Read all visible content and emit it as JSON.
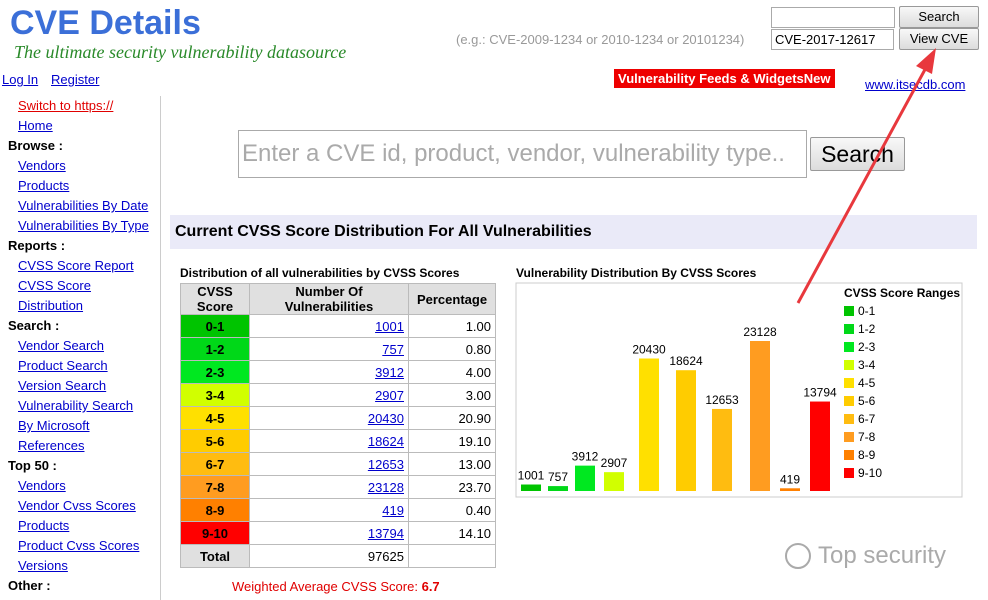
{
  "header": {
    "title": "CVE Details",
    "tagline": "The ultimate security vulnerability datasource",
    "example": "(e.g.: CVE-2009-1234 or 2010-1234 or 20101234)",
    "search_button": "Search",
    "cve_input": "CVE-2017-12617",
    "view_button": "View CVE",
    "login": "Log In",
    "register": "Register",
    "feeds": "Vulnerability Feeds & WidgetsNew",
    "site_link": "www.itsecdb.com"
  },
  "sidebar": {
    "items": [
      {
        "text": "Switch to https://",
        "kind": "alert"
      },
      {
        "text": "Home",
        "kind": "link"
      },
      {
        "text": "Browse :",
        "kind": "heading"
      },
      {
        "text": "Vendors",
        "kind": "link"
      },
      {
        "text": "Products",
        "kind": "link"
      },
      {
        "text": "Vulnerabilities By Date",
        "kind": "link"
      },
      {
        "text": "Vulnerabilities By Type",
        "kind": "link"
      },
      {
        "text": "Reports :",
        "kind": "heading"
      },
      {
        "text": "CVSS Score Report",
        "kind": "link"
      },
      {
        "text": "CVSS Score Distribution",
        "kind": "link"
      },
      {
        "text": "Search :",
        "kind": "heading"
      },
      {
        "text": "Vendor Search",
        "kind": "link"
      },
      {
        "text": "Product Search",
        "kind": "link"
      },
      {
        "text": "Version Search",
        "kind": "link"
      },
      {
        "text": "Vulnerability Search",
        "kind": "link"
      },
      {
        "text": "By Microsoft References",
        "kind": "link"
      },
      {
        "text": "Top 50 :",
        "kind": "heading"
      },
      {
        "text": "Vendors",
        "kind": "link"
      },
      {
        "text": "Vendor Cvss Scores",
        "kind": "link"
      },
      {
        "text": "Products",
        "kind": "link"
      },
      {
        "text": "Product Cvss Scores",
        "kind": "link"
      },
      {
        "text": "Versions",
        "kind": "link"
      },
      {
        "text": "Other :",
        "kind": "heading"
      }
    ]
  },
  "search": {
    "placeholder": "Enter a CVE id, product, vendor, vulnerability type..",
    "button": "Search"
  },
  "section_title": "Current CVSS Score Distribution For All Vulnerabilities",
  "table": {
    "caption": "Distribution of all vulnerabilities by CVSS Scores",
    "headers": [
      "CVSS Score",
      "Number Of Vulnerabilities",
      "Percentage"
    ],
    "rows": [
      [
        "0-1",
        1001,
        "1.00"
      ],
      [
        "1-2",
        757,
        "0.80"
      ],
      [
        "2-3",
        3912,
        "4.00"
      ],
      [
        "3-4",
        2907,
        "3.00"
      ],
      [
        "4-5",
        20430,
        "20.90"
      ],
      [
        "5-6",
        18624,
        "19.10"
      ],
      [
        "6-7",
        12653,
        "13.00"
      ],
      [
        "7-8",
        23128,
        "23.70"
      ],
      [
        "8-9",
        419,
        "0.40"
      ],
      [
        "9-10",
        13794,
        "14.10"
      ]
    ],
    "total_label": "Total",
    "total": 97625,
    "weighted_label": "Weighted Average CVSS Score:",
    "weighted_value": "6.7"
  },
  "chart": {
    "type": "bar",
    "title": "Vulnerability Distribution By CVSS Scores",
    "legend_title": "CVSS Score Ranges",
    "categories": [
      "0-1",
      "1-2",
      "2-3",
      "3-4",
      "4-5",
      "5-6",
      "6-7",
      "7-8",
      "8-9",
      "9-10"
    ],
    "values": [
      1001,
      757,
      3912,
      2907,
      20430,
      18624,
      12653,
      23128,
      419,
      13794
    ],
    "colors": [
      "#00c400",
      "#00d818",
      "#00e820",
      "#d1ff00",
      "#ffe000",
      "#ffcc00",
      "#ffbc10",
      "#ff9c20",
      "#ff8000",
      "#ff0000"
    ]
  },
  "watermark": "Top security"
}
